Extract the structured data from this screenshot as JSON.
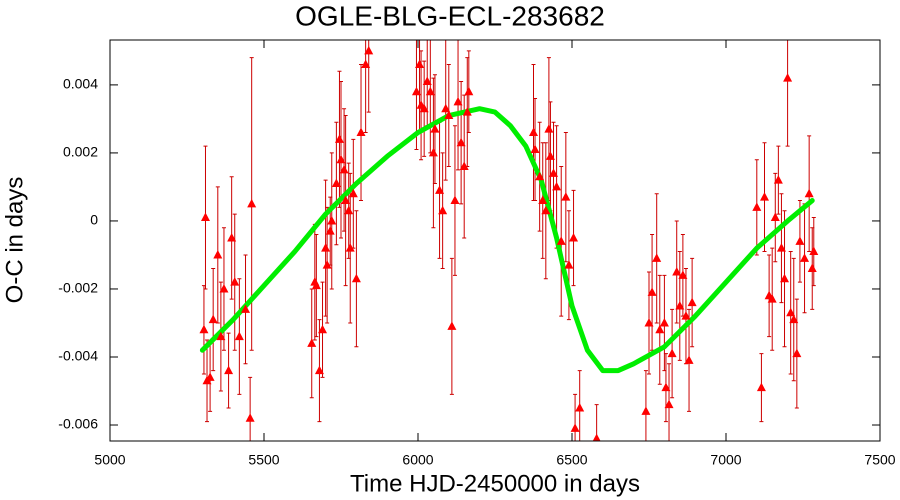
{
  "chart_data": {
    "type": "scatter",
    "title": "OGLE-BLG-ECL-283682",
    "x_label": "Time HJD-2450000 in days",
    "y_label": "O-C in days",
    "xlim": [
      5000,
      7500
    ],
    "xticks": [
      5000,
      5500,
      6000,
      6500,
      7000,
      7500
    ],
    "ylim": [
      -0.00647,
      0.00532
    ],
    "yticks": [
      -0.006,
      -0.004,
      -0.002,
      0,
      0.002,
      0.004
    ],
    "points": {
      "color": "#ff0000",
      "error_color": "#cc0000",
      "x": [
        5305,
        5310,
        5315,
        5325,
        5335,
        5350,
        5360,
        5370,
        5385,
        5395,
        5405,
        5420,
        5440,
        5455,
        5460,
        5655,
        5665,
        5670,
        5680,
        5690,
        5700,
        5705,
        5715,
        5720,
        5735,
        5745,
        5750,
        5760,
        5765,
        5775,
        5780,
        5790,
        5800,
        5815,
        5830,
        5840,
        5995,
        6005,
        6010,
        6020,
        6030,
        6040,
        6050,
        6055,
        6070,
        6080,
        6090,
        6100,
        6110,
        6120,
        6130,
        6140,
        6150,
        6160,
        6165,
        6375,
        6380,
        6395,
        6405,
        6415,
        6425,
        6430,
        6440,
        6450,
        6465,
        6480,
        6490,
        6505,
        6510,
        6525,
        6580,
        6740,
        6750,
        6760,
        6775,
        6785,
        6800,
        6805,
        6815,
        6825,
        6840,
        6850,
        6860,
        6870,
        6880,
        6890,
        7100,
        7115,
        7125,
        7140,
        7150,
        7160,
        7170,
        7180,
        7190,
        7200,
        7210,
        7220,
        7230,
        7240,
        7255,
        7270,
        7280,
        7285
      ],
      "values": [
        -0.0032,
        0.0001,
        -0.0047,
        -0.0046,
        -0.0029,
        -0.001,
        -0.0034,
        -0.002,
        -0.0044,
        -0.0005,
        -0.0018,
        -0.0034,
        -0.0026,
        -0.0058,
        0.0005,
        -0.0036,
        -0.0018,
        -0.0019,
        -0.0044,
        -0.0032,
        -0.0008,
        -0.0013,
        -0.0003,
        0,
        0.0011,
        0.0024,
        0.0018,
        0.0015,
        0.0006,
        0.0003,
        -0.0008,
        0.0008,
        -0.0017,
        0.0026,
        0.0046,
        0.005,
        0.0038,
        0.0046,
        0.0034,
        0.0033,
        0.0041,
        0.0038,
        0.002,
        0.0027,
        0.0009,
        0.0003,
        0.0033,
        0.0031,
        -0.0031,
        0.0006,
        0.0035,
        0.0023,
        0.0016,
        0.0032,
        0.0038,
        0.0026,
        0.0021,
        0.0013,
        0.0006,
        0.0003,
        0.0027,
        0.0019,
        0.0014,
        0.001,
        -0.0006,
        0.0007,
        -0.0013,
        -0.0005,
        -0.0061,
        -0.0055,
        -0.0064,
        -0.0056,
        -0.003,
        -0.0021,
        -0.0011,
        -0.0032,
        -0.003,
        -0.0049,
        -0.0054,
        -0.0039,
        -0.0015,
        -0.0025,
        -0.0016,
        -0.0028,
        -0.0041,
        -0.0024,
        0.0004,
        -0.0049,
        0.0007,
        -0.0022,
        -0.0023,
        0.0001,
        0.0012,
        -0.0008,
        -0.0017,
        0.0042,
        -0.0027,
        -0.0029,
        -0.0039,
        -0.0006,
        -0.0011,
        0.0008,
        -0.0014,
        -0.0009
      ],
      "errors": [
        0.0013,
        0.0021,
        0.0012,
        0.001,
        0.0015,
        0.002,
        0.0016,
        0.0018,
        0.0011,
        0.0018,
        0.002,
        0.0017,
        0.0016,
        0.0012,
        0.0043,
        0.0016,
        0.0017,
        0.0015,
        0.0015,
        0.0014,
        0.002,
        0.0017,
        0.001,
        0.002,
        0.0018,
        0.002,
        0.0023,
        0.0018,
        0.0025,
        0.0014,
        0.0022,
        0.0016,
        0.002,
        0.002,
        0.002,
        0.0018,
        0.0017,
        0.002,
        0.0016,
        0.0014,
        0.0013,
        0.0018,
        0.0022,
        0.0016,
        0.002,
        0.0017,
        0.0021,
        0.0015,
        0.002,
        0.0022,
        0.002,
        0.0018,
        0.0021,
        0.0016,
        0.0012,
        0.002,
        0.0015,
        0.0016,
        0.0017,
        0.002,
        0.0021,
        0.0016,
        0.0015,
        0.0018,
        0.0022,
        0.0019,
        0.0016,
        0.0014,
        0.001,
        0.0011,
        0.001,
        0.0012,
        0.0015,
        0.0017,
        0.0019,
        0.0016,
        0.0014,
        0.001,
        0.0012,
        0.0013,
        0.0015,
        0.0016,
        0.0012,
        0.0014,
        0.0015,
        0.0013,
        0.0014,
        0.001,
        0.0016,
        0.0012,
        0.0015,
        0.0013,
        0.001,
        0.0016,
        0.002,
        0.002,
        0.0018,
        0.0018,
        0.0016,
        0.0012,
        0.0016,
        0.0017,
        0.0012,
        0.001
      ]
    },
    "fit": {
      "color": "#00ee00",
      "x": [
        5300,
        5400,
        5500,
        5600,
        5700,
        5800,
        5900,
        6000,
        6100,
        6200,
        6250,
        6300,
        6350,
        6400,
        6450,
        6500,
        6550,
        6600,
        6650,
        6700,
        6800,
        6900,
        7000,
        7100,
        7200,
        7280
      ],
      "values": [
        -0.0038,
        -0.0029,
        -0.0019,
        -0.0009,
        0.0002,
        0.0011,
        0.0019,
        0.0026,
        0.0031,
        0.0033,
        0.0032,
        0.0028,
        0.0022,
        0.0012,
        -0.0005,
        -0.0025,
        -0.0038,
        -0.0044,
        -0.0044,
        -0.0042,
        -0.0037,
        -0.0028,
        -0.0018,
        -0.0008,
        0,
        0.0006
      ]
    }
  }
}
